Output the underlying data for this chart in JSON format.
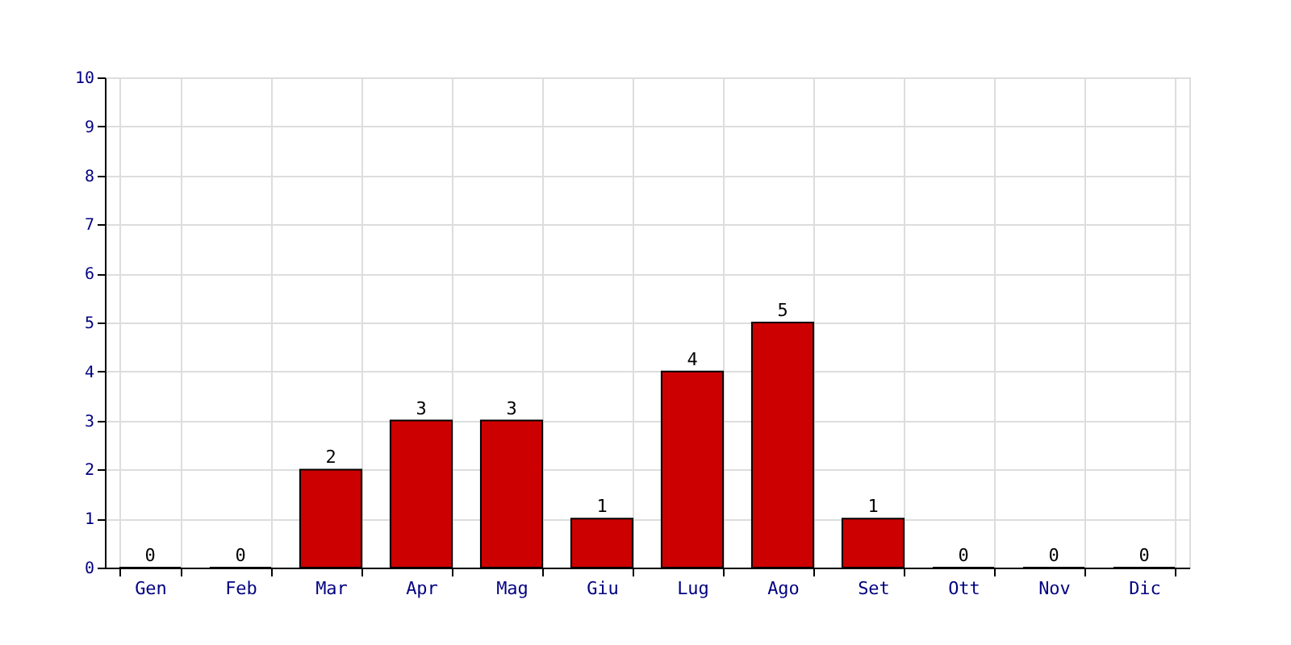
{
  "chart_data": {
    "type": "bar",
    "categories": [
      "Gen",
      "Feb",
      "Mar",
      "Apr",
      "Mag",
      "Giu",
      "Lug",
      "Ago",
      "Set",
      "Ott",
      "Nov",
      "Dic"
    ],
    "values": [
      0,
      0,
      2,
      3,
      3,
      1,
      4,
      5,
      1,
      0,
      0,
      0
    ],
    "color": "#cc0000",
    "ylim": [
      0,
      10
    ],
    "yticks": [
      0,
      1,
      2,
      3,
      4,
      5,
      6,
      7,
      8,
      9,
      10
    ],
    "grid": true,
    "data_labels": true
  }
}
